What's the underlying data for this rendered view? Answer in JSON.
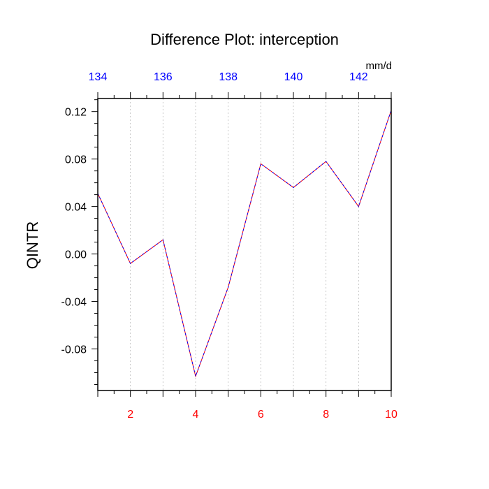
{
  "chart_data": {
    "type": "line",
    "title": "Difference Plot: interception",
    "ylabel": "QINTR",
    "units": "mm/d",
    "x": [
      1,
      2,
      3,
      4,
      5,
      6,
      7,
      8,
      9,
      10
    ],
    "series": [
      {
        "values": [
          0.051,
          -0.008,
          0.012,
          -0.103,
          -0.028,
          0.076,
          0.056,
          0.078,
          0.04,
          0.121
        ]
      }
    ],
    "xlim": [
      1,
      10
    ],
    "ylim": [
      -0.115,
      0.131
    ],
    "x_ticks": [
      2,
      4,
      6,
      8,
      10
    ],
    "x_tick_labels": [
      "2",
      "4",
      "6",
      "8",
      "10"
    ],
    "y_ticks": [
      0.12,
      0.08,
      0.04,
      0.0,
      -0.04,
      -0.08
    ],
    "y_tick_labels": [
      "0.12",
      "0.08",
      "0.04",
      "0.00",
      "-0.04",
      "-0.08"
    ],
    "top_axis": {
      "lim": [
        134,
        143
      ],
      "ticks": [
        134,
        136,
        138,
        140,
        142
      ],
      "tick_labels": [
        "134",
        "136",
        "138",
        "140",
        "142"
      ]
    },
    "vertical_gridlines": true,
    "colors": {
      "line_primary": "#ff0000",
      "line_secondary": "#0000ff",
      "bottom_tick_labels": "#ff0000",
      "top_tick_labels": "#0000ff",
      "gridline": "#bbbbbb"
    }
  }
}
